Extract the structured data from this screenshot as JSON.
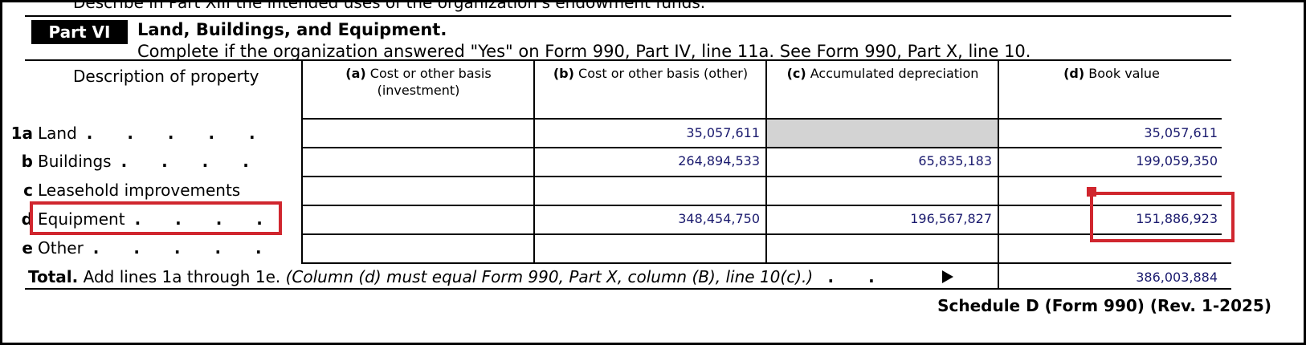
{
  "top_line": "Describe in Part XIII the intended uses of the organization's endowment funds.",
  "part": {
    "badge": "Part VI",
    "title": "Land, Buildings, and Equipment.",
    "subtitle": "Complete if the organization answered \"Yes\" on Form 990, Part IV, line 11a. See Form 990, Part X, line 10."
  },
  "headers": {
    "description": "Description of property",
    "a_letter": "(a)",
    "a_text": "Cost or other basis",
    "a_text2": "(investment)",
    "b_letter": "(b)",
    "b_text": "Cost or other basis (other)",
    "c_letter": "(c)",
    "c_text": "Accumulated depreciation",
    "d_letter": "(d)",
    "d_text": "Book value"
  },
  "rows": [
    {
      "line": "1a",
      "label": "Land",
      "dots": ". . . . .",
      "a": "",
      "b": "35,057,611",
      "c": "",
      "d": "35,057,611"
    },
    {
      "line": "b",
      "label": "Buildings",
      "dots": ". . . .",
      "a": "",
      "b": "264,894,533",
      "c": "65,835,183",
      "d": "199,059,350"
    },
    {
      "line": "c",
      "label": "Leasehold improvements",
      "dots": "",
      "a": "",
      "b": "",
      "c": "",
      "d": ""
    },
    {
      "line": "d",
      "label": "Equipment",
      "dots": ". . . .",
      "a": "",
      "b": "348,454,750",
      "c": "196,567,827",
      "d": "151,886,923"
    },
    {
      "line": "e",
      "label": "Other",
      "dots": ". . . . .",
      "a": "",
      "b": "",
      "c": "",
      "d": ""
    }
  ],
  "total": {
    "label": "Total.",
    "text": "Add lines 1a through 1e.",
    "note": "(Column (d) must equal Form 990, Part X, column (B), line 10(c).)",
    "dots": ". .",
    "value": "386,003,884"
  },
  "footer": "Schedule D (Form 990) (Rev. 1-2025)",
  "colors": {
    "highlight": "#d0262e",
    "shade": "#d3d3d3",
    "value_text": "#1a1a6e"
  }
}
